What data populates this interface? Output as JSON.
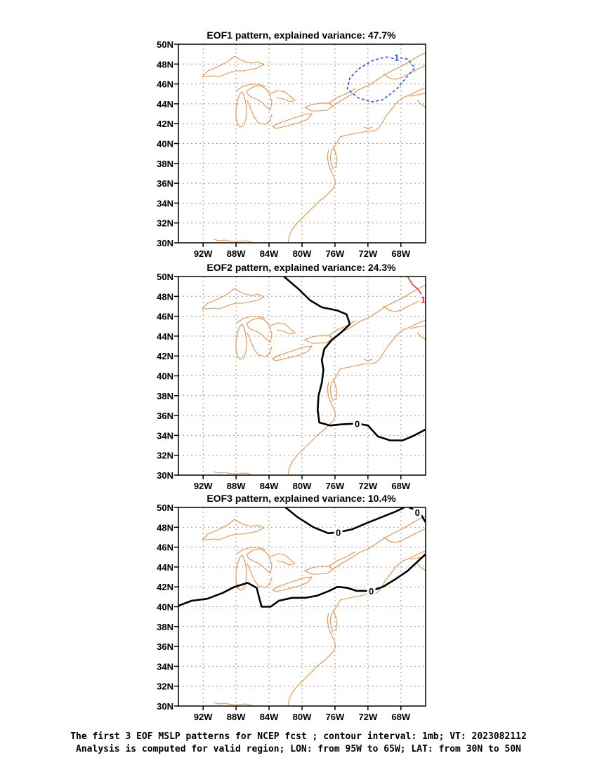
{
  "caption": {
    "line1": "The first 3 EOF MSLP patterns for NCEP fcst ; contour interval: 1mb; VT: 2023082112",
    "line2": "Analysis is computed for valid region; LON: from 95W to 65W; LAT: from 30N to 50N"
  },
  "colors": {
    "coastline": "#e8914a",
    "grid": "#9a9a9a",
    "zero_contour": "#000000",
    "negative_contour": "#2255ee",
    "positive_contour": "#ee3333"
  },
  "chart_data": [
    {
      "type": "contour-map",
      "title": "EOF1 pattern, explained variance: 47.7%",
      "xlim": [
        -95,
        -65
      ],
      "ylim": [
        30,
        50
      ],
      "x_ticks": [
        -92,
        -88,
        -84,
        -80,
        -76,
        -72,
        -68
      ],
      "x_tick_labels": [
        "92W",
        "88W",
        "84W",
        "80W",
        "76W",
        "72W",
        "68W"
      ],
      "y_ticks": [
        30,
        32,
        34,
        36,
        38,
        40,
        42,
        44,
        46,
        48,
        50
      ],
      "y_tick_labels": [
        "30N",
        "32N",
        "34N",
        "36N",
        "38N",
        "40N",
        "42N",
        "44N",
        "46N",
        "48N",
        "50N"
      ],
      "grid": true,
      "contours": [
        {
          "level": -1,
          "label": "-1",
          "style": "dashed",
          "color": "#2255ee",
          "label_at": [
            -68.7,
            48.7
          ],
          "points": [
            [
              -68.7,
              48.7
            ],
            [
              -67.2,
              48.5
            ],
            [
              -66.3,
              47.6
            ],
            [
              -67.2,
              46.8
            ],
            [
              -68.5,
              45.5
            ],
            [
              -70.2,
              44.4
            ],
            [
              -71.6,
              44.2
            ],
            [
              -73.2,
              44.6
            ],
            [
              -74.5,
              45.5
            ],
            [
              -74.2,
              46.6
            ],
            [
              -73.0,
              47.6
            ],
            [
              -71.3,
              48.4
            ],
            [
              -69.9,
              48.7
            ],
            [
              -68.7,
              48.7
            ]
          ]
        }
      ]
    },
    {
      "type": "contour-map",
      "title": "EOF2 pattern, explained variance: 24.3%",
      "xlim": [
        -95,
        -65
      ],
      "ylim": [
        30,
        50
      ],
      "x_ticks": [
        -92,
        -88,
        -84,
        -80,
        -76,
        -72,
        -68
      ],
      "x_tick_labels": [
        "92W",
        "88W",
        "84W",
        "80W",
        "76W",
        "72W",
        "68W"
      ],
      "y_ticks": [
        30,
        32,
        34,
        36,
        38,
        40,
        42,
        44,
        46,
        48,
        50
      ],
      "y_tick_labels": [
        "30N",
        "32N",
        "34N",
        "36N",
        "38N",
        "40N",
        "42N",
        "44N",
        "46N",
        "48N",
        "50N"
      ],
      "grid": true,
      "contours": [
        {
          "level": 0,
          "label": "0",
          "style": "solid",
          "color": "#000000",
          "label_at": [
            -73.3,
            35.2
          ],
          "points": [
            [
              -82.2,
              50.0
            ],
            [
              -80.5,
              48.8
            ],
            [
              -79.0,
              47.6
            ],
            [
              -77.6,
              46.9
            ],
            [
              -75.8,
              46.6
            ],
            [
              -74.6,
              46.2
            ],
            [
              -74.2,
              45.2
            ],
            [
              -75.2,
              44.4
            ],
            [
              -76.4,
              43.6
            ],
            [
              -77.3,
              42.7
            ],
            [
              -77.6,
              41.6
            ],
            [
              -77.4,
              40.6
            ],
            [
              -77.6,
              39.3
            ],
            [
              -78.0,
              38.0
            ],
            [
              -78.1,
              36.6
            ],
            [
              -77.9,
              35.3
            ],
            [
              -76.6,
              35.0
            ],
            [
              -75.4,
              35.1
            ],
            [
              -73.3,
              35.2
            ],
            [
              -72.0,
              35.0
            ],
            [
              -70.8,
              33.9
            ],
            [
              -69.3,
              33.5
            ],
            [
              -67.8,
              33.5
            ],
            [
              -66.6,
              33.9
            ],
            [
              -65.0,
              34.6
            ]
          ]
        },
        {
          "level": 1,
          "label": "1",
          "style": "solid",
          "color": "#ee3333",
          "label_at": [
            -65.3,
            47.7
          ],
          "points": [
            [
              -67.2,
              50.0
            ],
            [
              -66.6,
              49.2
            ],
            [
              -65.9,
              48.7
            ],
            [
              -65.3,
              47.9
            ]
          ]
        }
      ]
    },
    {
      "type": "contour-map",
      "title": "EOF3 pattern, explained variance: 10.4%",
      "xlim": [
        -95,
        -65
      ],
      "ylim": [
        30,
        50
      ],
      "x_ticks": [
        -92,
        -88,
        -84,
        -80,
        -76,
        -72,
        -68
      ],
      "x_tick_labels": [
        "92W",
        "88W",
        "84W",
        "80W",
        "76W",
        "72W",
        "68W"
      ],
      "y_ticks": [
        30,
        32,
        34,
        36,
        38,
        40,
        42,
        44,
        46,
        48,
        50
      ],
      "y_tick_labels": [
        "30N",
        "32N",
        "34N",
        "36N",
        "38N",
        "40N",
        "42N",
        "44N",
        "46N",
        "48N",
        "50N"
      ],
      "grid": true,
      "contours": [
        {
          "level": 0,
          "label": "0",
          "style": "solid",
          "color": "#000000",
          "label_at": [
            -71.6,
            41.6
          ],
          "points": [
            [
              -95.0,
              40.1
            ],
            [
              -93.4,
              40.6
            ],
            [
              -91.5,
              40.8
            ],
            [
              -89.6,
              41.4
            ],
            [
              -88.2,
              42.0
            ],
            [
              -86.6,
              42.4
            ],
            [
              -85.5,
              41.9
            ],
            [
              -85.2,
              40.9
            ],
            [
              -84.9,
              40.0
            ],
            [
              -83.8,
              40.0
            ],
            [
              -82.8,
              40.6
            ],
            [
              -81.2,
              40.9
            ],
            [
              -79.6,
              40.9
            ],
            [
              -78.2,
              41.1
            ],
            [
              -76.7,
              41.6
            ],
            [
              -75.7,
              42.0
            ],
            [
              -74.5,
              41.9
            ],
            [
              -73.4,
              41.6
            ],
            [
              -71.6,
              41.6
            ],
            [
              -70.2,
              42.0
            ],
            [
              -68.8,
              42.7
            ],
            [
              -67.2,
              43.6
            ],
            [
              -65.0,
              45.3
            ]
          ]
        },
        {
          "level": 0,
          "label": "0",
          "style": "solid",
          "color": "#000000",
          "label_at": [
            -75.6,
            47.5
          ],
          "points": [
            [
              -82.0,
              50.0
            ],
            [
              -80.5,
              49.0
            ],
            [
              -78.6,
              48.0
            ],
            [
              -76.8,
              47.4
            ],
            [
              -75.6,
              47.5
            ],
            [
              -73.9,
              47.8
            ],
            [
              -72.2,
              48.4
            ],
            [
              -70.4,
              49.0
            ],
            [
              -68.6,
              49.6
            ],
            [
              -67.6,
              50.0
            ]
          ]
        },
        {
          "level": 0,
          "label": "0",
          "style": "solid",
          "color": "#000000",
          "label_at": [
            -66.0,
            49.5
          ],
          "points": [
            [
              -67.0,
              50.0
            ],
            [
              -66.4,
              49.8
            ],
            [
              -66.0,
              49.5
            ],
            [
              -65.5,
              49.2
            ],
            [
              -65.0,
              48.5
            ]
          ]
        }
      ]
    }
  ]
}
